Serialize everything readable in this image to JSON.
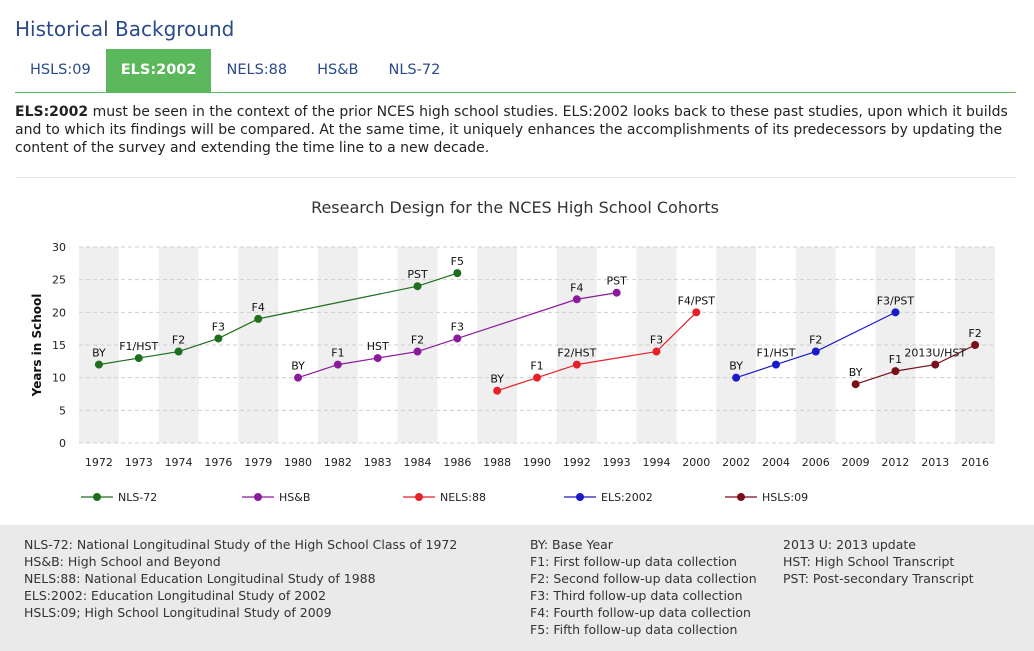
{
  "header": {
    "title": "Historical Background"
  },
  "tabs": [
    {
      "label": "HSLS:09",
      "active": false
    },
    {
      "label": "ELS:2002",
      "active": true
    },
    {
      "label": "NELS:88",
      "active": false
    },
    {
      "label": "HS&B",
      "active": false
    },
    {
      "label": "NLS-72",
      "active": false
    }
  ],
  "intro": {
    "bold": "ELS:2002",
    "text": " must be seen in the context of the prior NCES high school studies. ELS:2002 looks back to these past studies, upon which it builds and to which its findings will be compared. At the same time, it uniquely enhances the accomplishments of its predecessors by updating the content of the survey and extending the time line to a new decade."
  },
  "chart_data": {
    "type": "line",
    "title": "Research Design for the NCES High School Cohorts",
    "ylabel": "Years in School",
    "xlabel": "",
    "ylim": [
      0,
      30
    ],
    "yticks": [
      0,
      5,
      10,
      15,
      20,
      25,
      30
    ],
    "categories": [
      "1972",
      "1973",
      "1974",
      "1976",
      "1979",
      "1980",
      "1982",
      "1983",
      "1984",
      "1986",
      "1988",
      "1990",
      "1992",
      "1993",
      "1994",
      "2000",
      "2002",
      "2004",
      "2006",
      "2009",
      "2012",
      "2013",
      "2016"
    ],
    "grid": true,
    "legend_position": "bottom",
    "series": [
      {
        "name": "NLS-72",
        "color": "#1e6e1e",
        "points": [
          {
            "x": "1972",
            "y": 12,
            "label": "BY"
          },
          {
            "x": "1973",
            "y": 13,
            "label": "F1/HST"
          },
          {
            "x": "1974",
            "y": 14,
            "label": "F2"
          },
          {
            "x": "1976",
            "y": 16,
            "label": "F3"
          },
          {
            "x": "1979",
            "y": 19,
            "label": "F4"
          },
          {
            "x": "1984",
            "y": 24,
            "label": "PST"
          },
          {
            "x": "1986",
            "y": 26,
            "label": "F5"
          }
        ]
      },
      {
        "name": "HS&B",
        "color": "#8b1a9c",
        "points": [
          {
            "x": "1980",
            "y": 10,
            "label": "BY"
          },
          {
            "x": "1982",
            "y": 12,
            "label": "F1"
          },
          {
            "x": "1983",
            "y": 13,
            "label": "HST"
          },
          {
            "x": "1984",
            "y": 14,
            "label": "F2"
          },
          {
            "x": "1986",
            "y": 16,
            "label": "F3"
          },
          {
            "x": "1992",
            "y": 22,
            "label": "F4"
          },
          {
            "x": "1993",
            "y": 23,
            "label": "PST"
          }
        ]
      },
      {
        "name": "NELS:88",
        "color": "#e8202a",
        "points": [
          {
            "x": "1988",
            "y": 8,
            "label": "BY"
          },
          {
            "x": "1990",
            "y": 10,
            "label": "F1"
          },
          {
            "x": "1992",
            "y": 12,
            "label": "F2/HST"
          },
          {
            "x": "1994",
            "y": 14,
            "label": "F3"
          },
          {
            "x": "2000",
            "y": 20,
            "label": "F4/PST"
          }
        ]
      },
      {
        "name": "ELS:2002",
        "color": "#1a1ac8",
        "points": [
          {
            "x": "2002",
            "y": 10,
            "label": "BY"
          },
          {
            "x": "2004",
            "y": 12,
            "label": "F1/HST"
          },
          {
            "x": "2006",
            "y": 14,
            "label": "F2"
          },
          {
            "x": "2012",
            "y": 20,
            "label": "F3/PST"
          }
        ]
      },
      {
        "name": "HSLS:09",
        "color": "#7a0f1a",
        "points": [
          {
            "x": "2009",
            "y": 9,
            "label": "BY"
          },
          {
            "x": "2012",
            "y": 11,
            "label": "F1"
          },
          {
            "x": "2013",
            "y": 12,
            "label": "2013U/HST"
          },
          {
            "x": "2016",
            "y": 15,
            "label": "F2"
          }
        ]
      }
    ]
  },
  "glossary": {
    "studies": [
      "NLS-72: National Longitudinal Study of the High School Class of 1972",
      "HS&B: High School and Beyond",
      "NELS:88: National Education Longitudinal Study of 1988",
      "ELS:2002: Education Longitudinal Study of 2002",
      "HSLS:09; High School Longitudinal Study of 2009"
    ],
    "waves": [
      "BY: Base Year",
      "F1: First follow-up data collection",
      "F2: Second follow-up data collection",
      "F3: Third follow-up data collection",
      "F4: Fourth follow-up data collection",
      "F5: Fifth follow-up data collection"
    ],
    "other": [
      "2013 U: 2013 update",
      "HST: High School Transcript",
      "PST: Post-secondary Transcript"
    ]
  }
}
